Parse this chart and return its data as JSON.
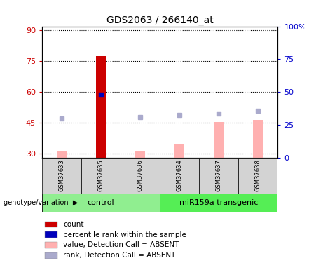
{
  "title": "GDS2063 / 266140_at",
  "samples": [
    "GSM37633",
    "GSM37635",
    "GSM37636",
    "GSM37634",
    "GSM37637",
    "GSM37638"
  ],
  "ylim_left": [
    28,
    92
  ],
  "ylim_right": [
    0,
    100
  ],
  "yticks_left": [
    30,
    45,
    60,
    75,
    90
  ],
  "yticks_right": [
    0,
    25,
    50,
    75,
    100
  ],
  "ytick_labels_right": [
    "0",
    "25",
    "50",
    "75",
    "100%"
  ],
  "red_bars": {
    "GSM37635": 77.5
  },
  "pink_bars": {
    "GSM37633": 31.5,
    "GSM37636": 31.0,
    "GSM37634": 34.5,
    "GSM37637": 45.5,
    "GSM37638": 46.5
  },
  "blue_square": {
    "GSM37635": 58.8
  },
  "light_blue_squares": {
    "GSM37633": 47.0,
    "GSM37636": 47.8,
    "GSM37634": 48.8,
    "GSM37637": 49.5,
    "GSM37638": 51.0
  },
  "bar_bottom": 28,
  "left_axis_color": "#cc0000",
  "right_axis_color": "#0000cc",
  "red_bar_color": "#cc0000",
  "pink_bar_color": "#ffb0b0",
  "blue_dot_color": "#0000bb",
  "light_blue_color": "#aaaacc",
  "control_color": "#90ee90",
  "transgenic_color": "#55ee55",
  "bg_color": "#ffffff",
  "legend_items": [
    "count",
    "percentile rank within the sample",
    "value, Detection Call = ABSENT",
    "rank, Detection Call = ABSENT"
  ]
}
